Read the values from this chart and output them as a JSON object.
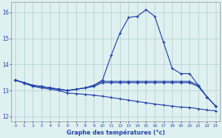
{
  "hours": [
    0,
    1,
    2,
    3,
    4,
    5,
    6,
    7,
    8,
    9,
    10,
    11,
    12,
    13,
    14,
    15,
    16,
    17,
    18,
    19,
    20,
    21,
    22,
    23
  ],
  "line_peak": [
    13.4,
    13.3,
    13.2,
    13.15,
    13.1,
    13.05,
    13.0,
    13.05,
    13.1,
    13.2,
    13.4,
    14.35,
    15.2,
    15.8,
    15.85,
    16.1,
    15.85,
    14.85,
    13.85,
    13.65,
    13.65,
    13.2,
    12.75,
    12.4
  ],
  "line_flat_high": [
    13.4,
    13.3,
    13.2,
    13.15,
    13.1,
    13.05,
    13.0,
    13.05,
    13.1,
    13.2,
    13.35,
    13.35,
    13.35,
    13.35,
    13.35,
    13.35,
    13.35,
    13.35,
    13.35,
    13.35,
    13.35,
    13.2,
    12.75,
    12.4
  ],
  "line_flat_mid": [
    13.4,
    13.3,
    13.2,
    13.15,
    13.1,
    13.05,
    13.0,
    13.05,
    13.1,
    13.15,
    13.3,
    13.3,
    13.3,
    13.3,
    13.3,
    13.3,
    13.3,
    13.3,
    13.3,
    13.3,
    13.3,
    13.15,
    12.75,
    12.4
  ],
  "line_slope": [
    13.4,
    13.28,
    13.16,
    13.1,
    13.05,
    13.0,
    12.9,
    12.88,
    12.85,
    12.82,
    12.78,
    12.73,
    12.68,
    12.63,
    12.58,
    12.53,
    12.48,
    12.44,
    12.4,
    12.36,
    12.35,
    12.3,
    12.25,
    12.22
  ],
  "line_color": "#2244aa",
  "bg_color": "#dff0f0",
  "grid_color": "#aacccc",
  "xlabel": "Graphe des températures (°c)",
  "ylim": [
    11.8,
    16.4
  ],
  "xlim": [
    -0.5,
    23.5
  ],
  "yticks": [
    12,
    13,
    14,
    15,
    16
  ],
  "xticks": [
    0,
    1,
    2,
    3,
    4,
    5,
    6,
    7,
    8,
    9,
    10,
    11,
    12,
    13,
    14,
    15,
    16,
    17,
    18,
    19,
    20,
    21,
    22,
    23
  ]
}
